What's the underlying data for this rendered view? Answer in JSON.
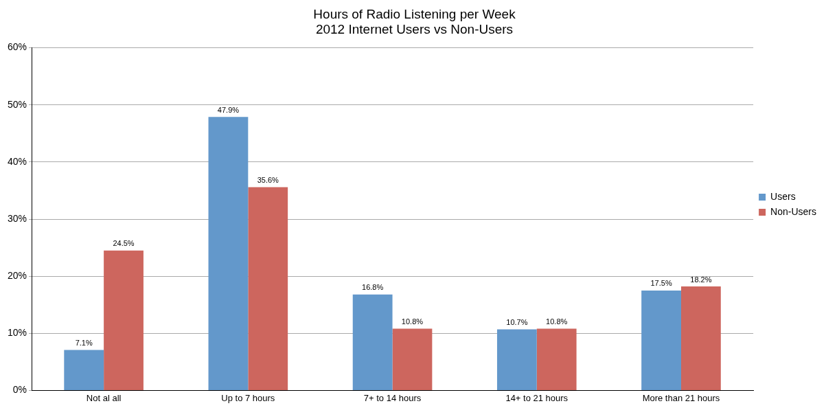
{
  "chart_data": {
    "type": "bar",
    "title": "Hours of Radio Listening per Week",
    "subtitle": "2012 Internet Users vs Non-Users",
    "categories": [
      "Not al all",
      "Up to 7 hours",
      "7+ to 14 hours",
      "14+ to 21 hours",
      "More than 21 hours"
    ],
    "series": [
      {
        "name": "Users",
        "color": "#6398cb",
        "values": [
          7.1,
          47.9,
          16.8,
          10.7,
          17.5
        ],
        "value_labels": [
          "7.1%",
          "47.9%",
          "16.8%",
          "10.7%",
          "17.5%"
        ]
      },
      {
        "name": "Non-Users",
        "color": "#cd665e",
        "values": [
          24.5,
          35.6,
          10.8,
          10.8,
          18.2
        ],
        "value_labels": [
          "24.5%",
          "35.6%",
          "10.8%",
          "10.8%",
          "18.2%"
        ]
      }
    ],
    "ylim": [
      0,
      60
    ],
    "yticks": [
      {
        "value": 0,
        "label": "0%"
      },
      {
        "value": 10,
        "label": "10%"
      },
      {
        "value": 20,
        "label": "20%"
      },
      {
        "value": 30,
        "label": "30%"
      },
      {
        "value": 40,
        "label": "40%"
      },
      {
        "value": 50,
        "label": "50%"
      },
      {
        "value": 60,
        "label": "60%"
      }
    ],
    "grid": "y",
    "legend": "right"
  }
}
